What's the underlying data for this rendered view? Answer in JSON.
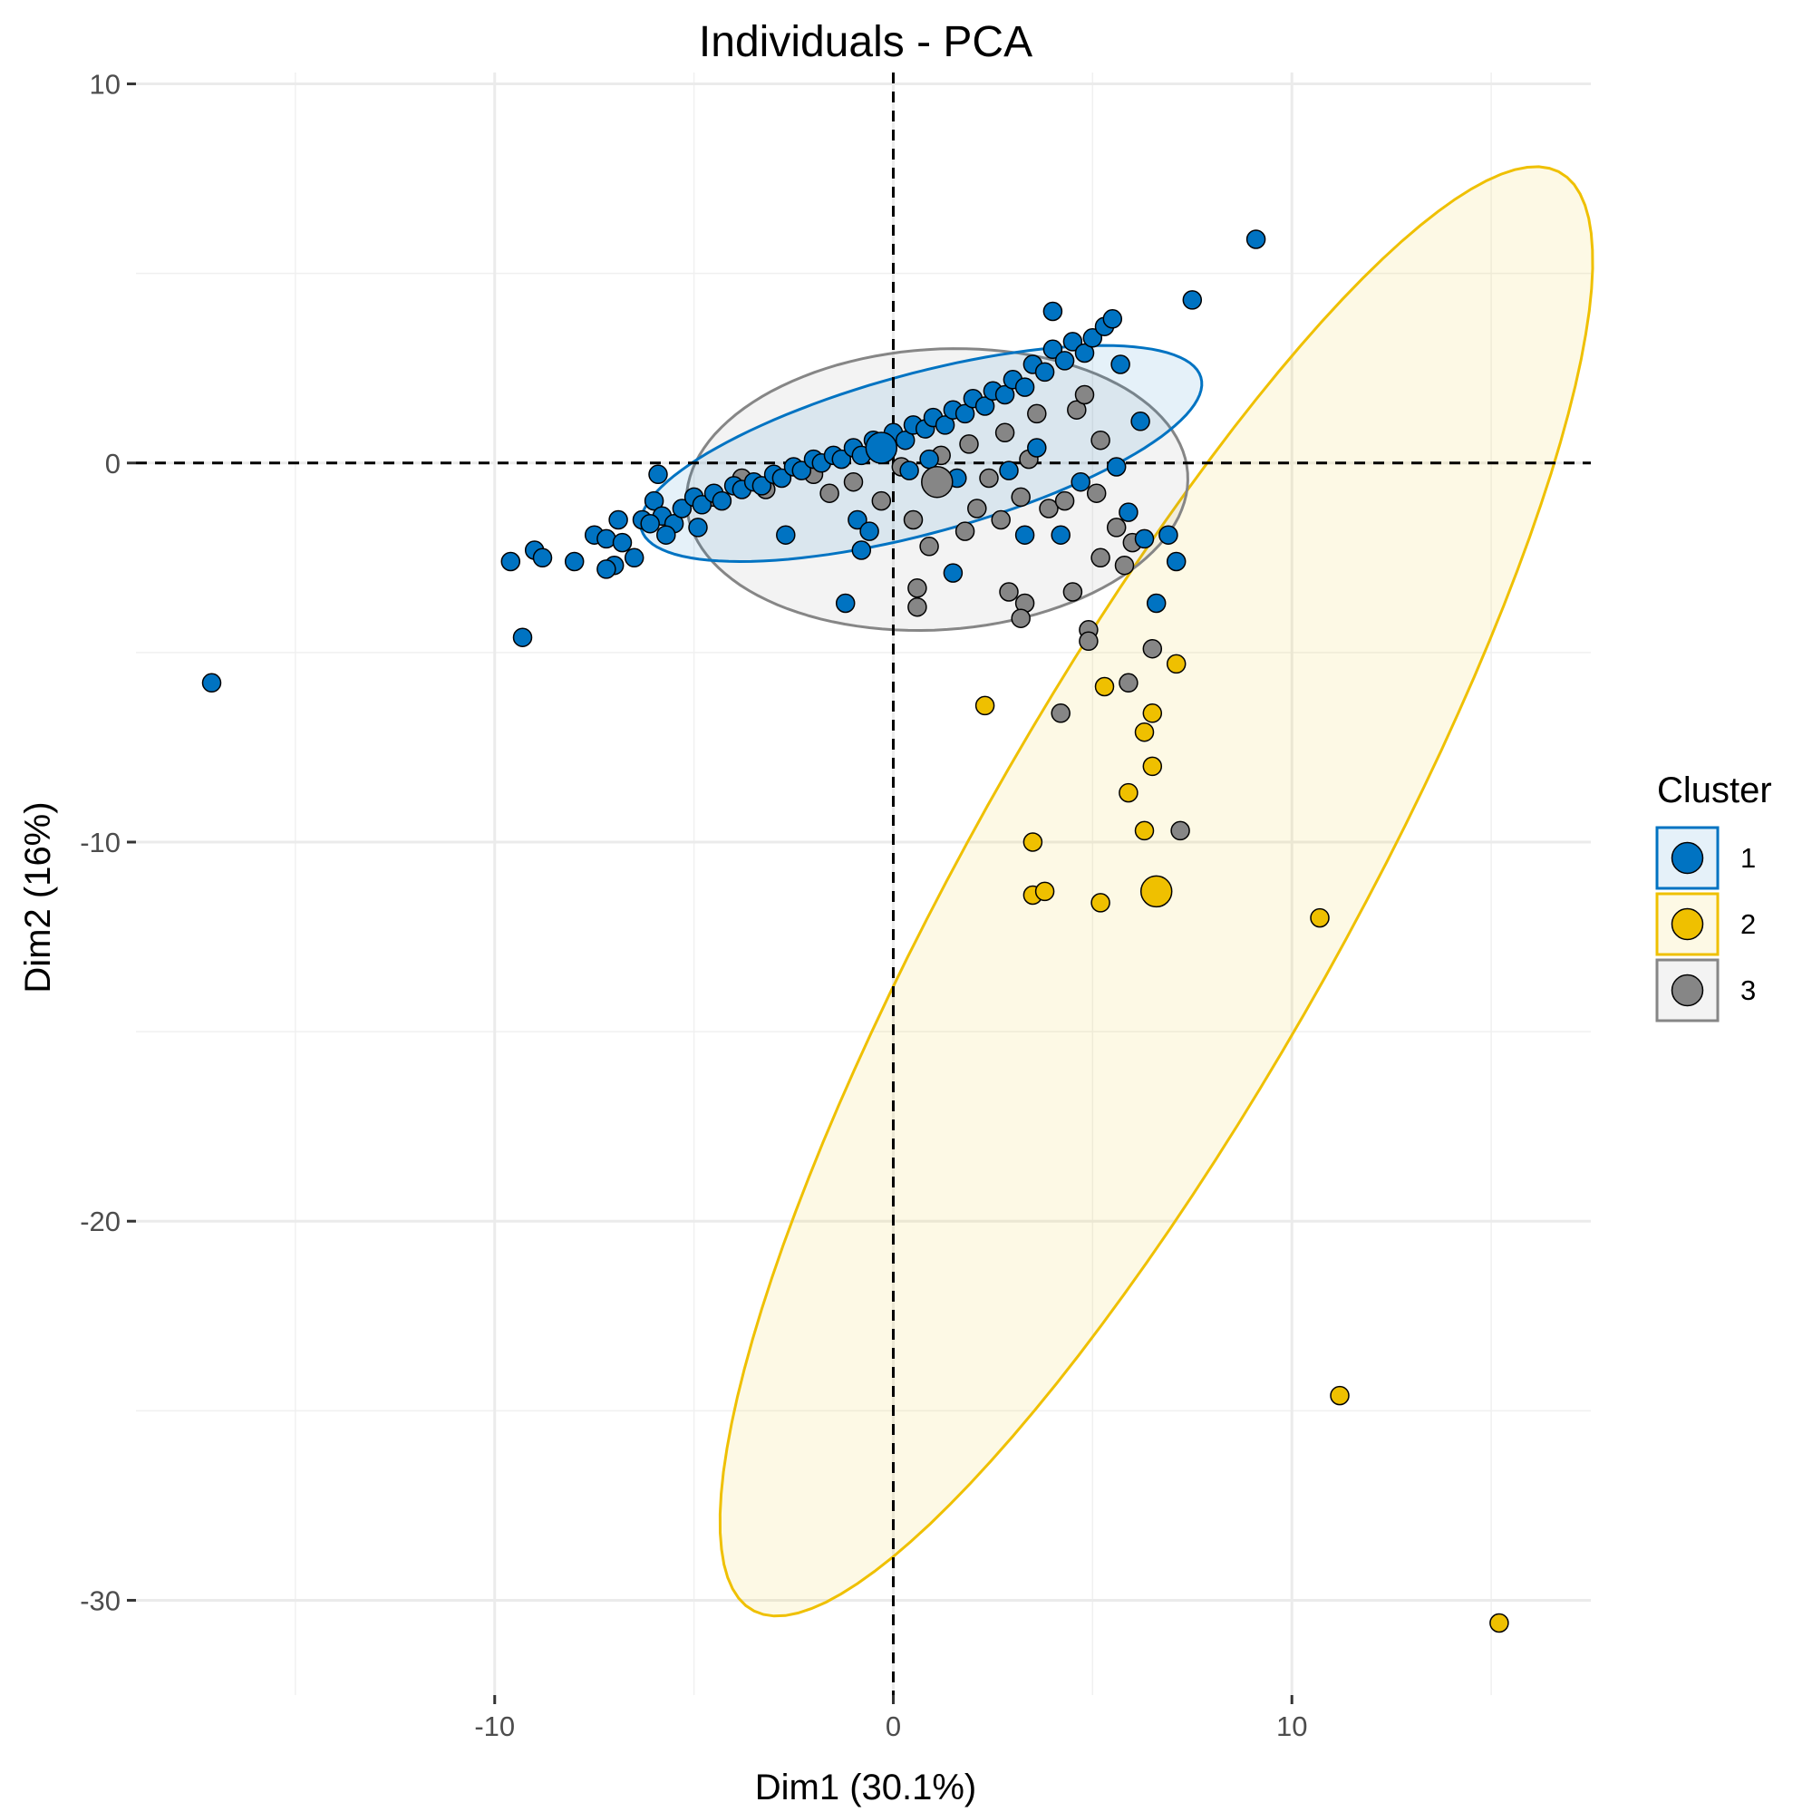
{
  "chart_data": {
    "type": "scatter",
    "title": "Individuals - PCA",
    "xlabel": "Dim1 (30.1%)",
    "ylabel": "Dim2 (16%)",
    "xlim": [
      -19,
      17.5
    ],
    "ylim": [
      -32.5,
      10.3
    ],
    "x_ticks": [
      -10,
      0,
      10
    ],
    "x_tick_labels": [
      "-10",
      "0",
      "10"
    ],
    "y_ticks": [
      10,
      0,
      -10,
      -20,
      -30
    ],
    "y_tick_labels": [
      "10",
      "0",
      "-10",
      "-20",
      "-30"
    ],
    "reference_lines": {
      "x": 0,
      "y": 0,
      "style": "dashed"
    },
    "grid": true,
    "legend": {
      "title": "Cluster",
      "position": "right"
    },
    "series": [
      {
        "name": "1",
        "color": "#0073C2",
        "centroid": [
          -0.3,
          0.4
        ],
        "ellipse": {
          "cx": 0.7,
          "cy": 0.25,
          "rx": 7.3,
          "ry": 2.1,
          "angle_deg": 16
        },
        "points": [
          [
            -17.1,
            -5.8
          ],
          [
            -9.6,
            -2.6
          ],
          [
            -9.3,
            -4.6
          ],
          [
            -9.0,
            -2.3
          ],
          [
            -8.8,
            -2.5
          ],
          [
            -8.0,
            -2.6
          ],
          [
            -7.5,
            -1.9
          ],
          [
            -7.2,
            -2.0
          ],
          [
            -7.0,
            -2.7
          ],
          [
            -6.8,
            -2.1
          ],
          [
            -6.5,
            -2.5
          ],
          [
            -6.3,
            -1.5
          ],
          [
            -6.0,
            -1.0
          ],
          [
            -5.8,
            -1.4
          ],
          [
            -5.5,
            -1.6
          ],
          [
            -5.3,
            -1.2
          ],
          [
            -5.0,
            -0.9
          ],
          [
            -4.8,
            -1.1
          ],
          [
            -4.5,
            -0.8
          ],
          [
            -4.3,
            -1.0
          ],
          [
            -4.0,
            -0.6
          ],
          [
            -3.8,
            -0.7
          ],
          [
            -3.5,
            -0.5
          ],
          [
            -3.3,
            -0.6
          ],
          [
            -3.0,
            -0.3
          ],
          [
            -2.8,
            -0.4
          ],
          [
            -2.5,
            -0.1
          ],
          [
            -2.3,
            -0.2
          ],
          [
            -2.0,
            0.1
          ],
          [
            -1.8,
            0.0
          ],
          [
            -1.5,
            0.2
          ],
          [
            -1.3,
            0.1
          ],
          [
            -1.0,
            0.4
          ],
          [
            -0.8,
            0.2
          ],
          [
            -0.5,
            0.6
          ],
          [
            -0.3,
            0.4
          ],
          [
            0.0,
            0.8
          ],
          [
            0.3,
            0.6
          ],
          [
            0.5,
            1.0
          ],
          [
            0.8,
            0.9
          ],
          [
            1.0,
            1.2
          ],
          [
            1.3,
            1.0
          ],
          [
            1.5,
            1.4
          ],
          [
            1.8,
            1.3
          ],
          [
            2.0,
            1.7
          ],
          [
            2.3,
            1.5
          ],
          [
            2.5,
            1.9
          ],
          [
            2.8,
            1.8
          ],
          [
            3.0,
            2.2
          ],
          [
            3.3,
            2.0
          ],
          [
            3.5,
            2.6
          ],
          [
            3.8,
            2.4
          ],
          [
            4.0,
            3.0
          ],
          [
            4.3,
            2.7
          ],
          [
            4.5,
            3.2
          ],
          [
            4.8,
            2.9
          ],
          [
            5.0,
            3.3
          ],
          [
            5.3,
            3.6
          ],
          [
            5.7,
            2.6
          ],
          [
            -5.9,
            -0.3
          ],
          [
            -6.1,
            -1.6
          ],
          [
            -7.2,
            -2.8
          ],
          [
            -6.9,
            -1.5
          ],
          [
            -5.7,
            -1.9
          ],
          [
            -4.9,
            -1.7
          ],
          [
            -2.7,
            -1.9
          ],
          [
            -1.2,
            -3.7
          ],
          [
            -0.8,
            -2.3
          ],
          [
            1.5,
            -2.9
          ],
          [
            3.3,
            -1.9
          ],
          [
            4.2,
            -1.9
          ],
          [
            5.6,
            -0.1
          ],
          [
            5.9,
            -1.3
          ],
          [
            6.3,
            -2.0
          ],
          [
            6.9,
            -1.9
          ],
          [
            7.1,
            -2.6
          ],
          [
            6.6,
            -3.7
          ],
          [
            7.5,
            4.3
          ],
          [
            9.1,
            5.9
          ],
          [
            4.0,
            4.0
          ],
          [
            5.5,
            3.8
          ],
          [
            1.6,
            -0.4
          ],
          [
            0.4,
            -0.2
          ],
          [
            -0.9,
            -1.5
          ],
          [
            -0.6,
            -1.8
          ],
          [
            4.7,
            -0.5
          ],
          [
            6.2,
            1.1
          ],
          [
            2.9,
            -0.2
          ],
          [
            3.6,
            0.4
          ],
          [
            0.9,
            0.1
          ]
        ]
      },
      {
        "name": "2",
        "color": "#EFC000",
        "centroid": [
          6.6,
          -11.3
        ],
        "ellipse": {
          "cx": 6.6,
          "cy": -11.3,
          "rx": 21.5,
          "ry": 4.8,
          "angle_deg": 62
        },
        "points": [
          [
            2.3,
            -6.4
          ],
          [
            5.3,
            -5.9
          ],
          [
            7.1,
            -5.3
          ],
          [
            6.5,
            -6.6
          ],
          [
            6.3,
            -7.1
          ],
          [
            6.5,
            -8.0
          ],
          [
            5.9,
            -8.7
          ],
          [
            6.3,
            -9.7
          ],
          [
            3.5,
            -10.0
          ],
          [
            3.5,
            -11.4
          ],
          [
            3.8,
            -11.3
          ],
          [
            5.2,
            -11.6
          ],
          [
            10.7,
            -12.0
          ],
          [
            11.2,
            -24.6
          ],
          [
            15.2,
            -30.6
          ]
        ]
      },
      {
        "name": "3",
        "color": "#868686",
        "centroid": [
          1.1,
          -0.5
        ],
        "ellipse": {
          "cx": 1.1,
          "cy": -0.7,
          "rx": 6.3,
          "ry": 3.7,
          "angle_deg": 4
        },
        "points": [
          [
            -4.5,
            -0.9
          ],
          [
            -3.2,
            -0.7
          ],
          [
            -2.0,
            -0.3
          ],
          [
            -1.0,
            -0.5
          ],
          [
            -0.3,
            -1.0
          ],
          [
            0.5,
            -1.5
          ],
          [
            0.9,
            -2.2
          ],
          [
            1.8,
            -1.8
          ],
          [
            2.1,
            -1.2
          ],
          [
            2.7,
            -1.5
          ],
          [
            3.2,
            -0.9
          ],
          [
            3.9,
            -1.2
          ],
          [
            4.3,
            -1.0
          ],
          [
            5.1,
            -0.8
          ],
          [
            5.6,
            -1.7
          ],
          [
            6.0,
            -2.1
          ],
          [
            5.2,
            -2.5
          ],
          [
            5.8,
            -2.7
          ],
          [
            0.6,
            -3.3
          ],
          [
            0.6,
            -3.8
          ],
          [
            2.9,
            -3.4
          ],
          [
            3.3,
            -3.7
          ],
          [
            3.2,
            -4.1
          ],
          [
            4.5,
            -3.4
          ],
          [
            4.9,
            -4.4
          ],
          [
            4.9,
            -4.7
          ],
          [
            6.5,
            -4.9
          ],
          [
            5.9,
            -5.8
          ],
          [
            4.2,
            -6.6
          ],
          [
            7.2,
            -9.7
          ],
          [
            2.8,
            0.8
          ],
          [
            3.6,
            1.3
          ],
          [
            4.6,
            1.4
          ],
          [
            5.2,
            0.6
          ],
          [
            1.2,
            0.2
          ],
          [
            0.2,
            -0.1
          ],
          [
            -1.6,
            -0.8
          ],
          [
            -3.8,
            -0.4
          ],
          [
            2.4,
            -0.4
          ],
          [
            4.8,
            1.8
          ],
          [
            3.4,
            0.1
          ],
          [
            1.9,
            0.5
          ]
        ]
      }
    ]
  }
}
